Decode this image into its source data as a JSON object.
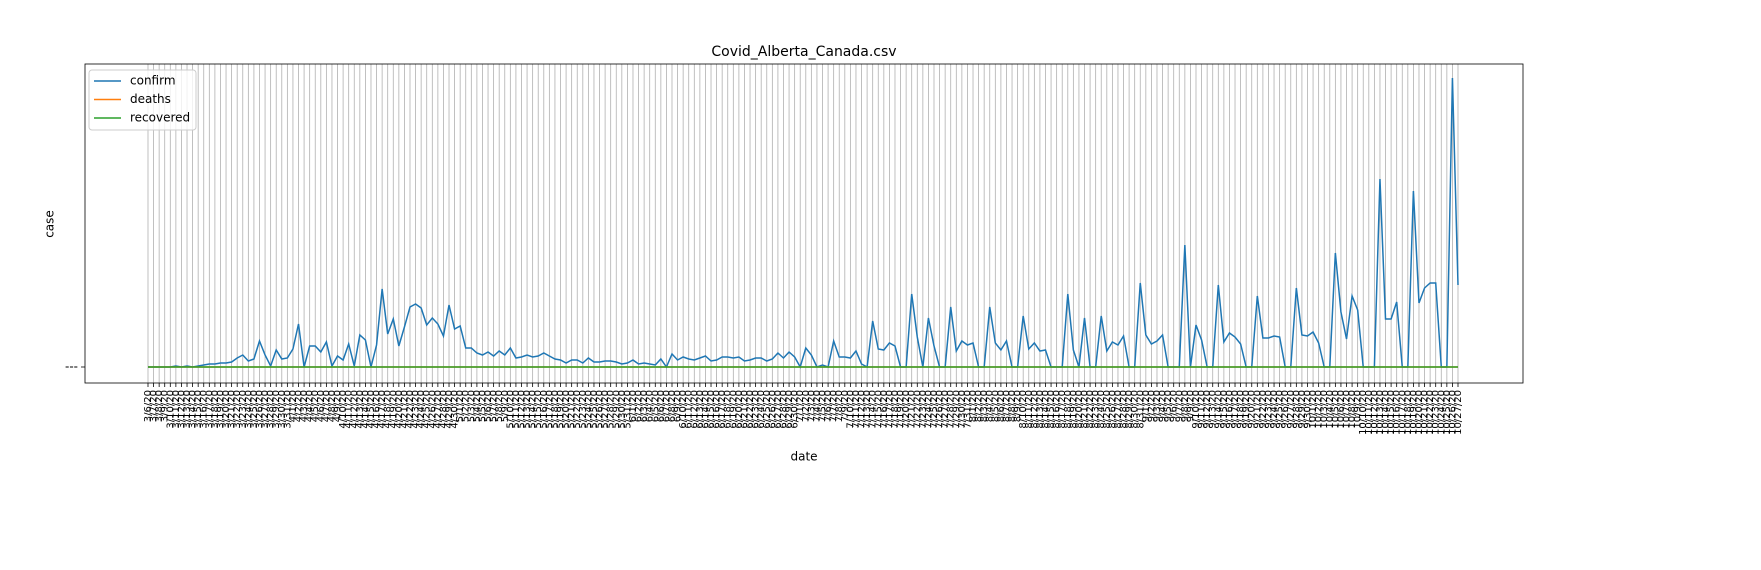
{
  "chart_data": {
    "type": "line",
    "title": "Covid_Alberta_Canada.csv",
    "xlabel": "date",
    "ylabel": "case",
    "categories": [
      "3/6/20",
      "3/7/20",
      "3/8/20",
      "3/9/20",
      "3/10/20",
      "3/11/20",
      "3/12/20",
      "3/13/20",
      "3/14/20",
      "3/15/20",
      "3/16/20",
      "3/17/20",
      "3/18/20",
      "3/19/20",
      "3/20/20",
      "3/21/20",
      "3/22/20",
      "3/23/20",
      "3/24/20",
      "3/25/20",
      "3/26/20",
      "3/27/20",
      "3/28/20",
      "3/29/20",
      "3/30/20",
      "3/31/20",
      "4/1/20",
      "4/2/20",
      "4/3/20",
      "4/4/20",
      "4/5/20",
      "4/6/20",
      "4/7/20",
      "4/8/20",
      "4/9/20",
      "4/10/20",
      "4/11/20",
      "4/12/20",
      "4/13/20",
      "4/14/20",
      "4/15/20",
      "4/16/20",
      "4/17/20",
      "4/18/20",
      "4/19/20",
      "4/20/20",
      "4/21/20",
      "4/22/20",
      "4/23/20",
      "4/24/20",
      "4/25/20",
      "4/26/20",
      "4/27/20",
      "4/28/20",
      "4/29/20",
      "4/30/20",
      "5/1/20",
      "5/2/20",
      "5/3/20",
      "5/4/20",
      "5/5/20",
      "5/6/20",
      "5/7/20",
      "5/8/20",
      "5/9/20",
      "5/10/20",
      "5/11/20",
      "5/12/20",
      "5/13/20",
      "5/14/20",
      "5/15/20",
      "5/16/20",
      "5/17/20",
      "5/18/20",
      "5/19/20",
      "5/20/20",
      "5/21/20",
      "5/22/20",
      "5/23/20",
      "5/24/20",
      "5/25/20",
      "5/26/20",
      "5/27/20",
      "5/28/20",
      "5/29/20",
      "5/30/20",
      "5/31/20",
      "6/1/20",
      "6/2/20",
      "6/3/20",
      "6/4/20",
      "6/5/20",
      "6/6/20",
      "6/7/20",
      "6/8/20",
      "6/9/20",
      "6/10/20",
      "6/11/20",
      "6/12/20",
      "6/13/20",
      "6/14/20",
      "6/15/20",
      "6/16/20",
      "6/17/20",
      "6/18/20",
      "6/19/20",
      "6/20/20",
      "6/21/20",
      "6/22/20",
      "6/23/20",
      "6/24/20",
      "6/25/20",
      "6/26/20",
      "6/27/20",
      "6/28/20",
      "6/29/20",
      "6/30/20",
      "7/1/20",
      "7/2/20",
      "7/3/20",
      "7/4/20",
      "7/5/20",
      "7/6/20",
      "7/7/20",
      "7/8/20",
      "7/9/20",
      "7/10/20",
      "7/11/20",
      "7/12/20",
      "7/13/20",
      "7/14/20",
      "7/15/20",
      "7/16/20",
      "7/17/20",
      "7/18/20",
      "7/19/20",
      "7/20/20",
      "7/21/20",
      "7/22/20",
      "7/23/20",
      "7/24/20",
      "7/25/20",
      "7/26/20",
      "7/27/20",
      "7/28/20",
      "7/29/20",
      "7/30/20",
      "7/31/20",
      "8/1/20",
      "8/2/20",
      "8/3/20",
      "8/4/20",
      "8/5/20",
      "8/6/20",
      "8/7/20",
      "8/8/20",
      "8/9/20",
      "8/10/20",
      "8/11/20",
      "8/12/20",
      "8/13/20",
      "8/14/20",
      "8/15/20",
      "8/16/20",
      "8/17/20",
      "8/18/20",
      "8/19/20",
      "8/20/20",
      "8/21/20",
      "8/22/20",
      "8/23/20",
      "8/24/20",
      "8/25/20",
      "8/26/20",
      "8/27/20",
      "8/28/20",
      "8/29/20",
      "8/30/20",
      "8/31/20",
      "9/1/20",
      "9/2/20",
      "9/3/20",
      "9/4/20",
      "9/5/20",
      "9/6/20",
      "9/7/20",
      "9/8/20",
      "9/9/20",
      "9/10/20",
      "9/11/20",
      "9/12/20",
      "9/13/20",
      "9/14/20",
      "9/15/20",
      "9/16/20",
      "9/17/20",
      "9/18/20",
      "9/19/20",
      "9/20/20",
      "9/21/20",
      "9/22/20",
      "9/23/20",
      "9/24/20",
      "9/25/20",
      "9/26/20",
      "9/27/20",
      "9/28/20",
      "9/29/20",
      "9/30/20",
      "10/1/20",
      "10/2/20",
      "10/3/20",
      "10/4/20",
      "10/5/20",
      "10/6/20",
      "10/7/20",
      "10/8/20",
      "10/9/20",
      "10/10/20",
      "10/11/20",
      "10/12/20",
      "10/13/20",
      "10/14/20",
      "10/15/20",
      "10/16/20",
      "10/17/20",
      "10/18/20",
      "10/19/20",
      "10/20/20",
      "10/21/20",
      "10/22/20",
      "10/23/20",
      "10/24/20",
      "10/25/20",
      "10/26/20",
      "10/27/20"
    ],
    "series": [
      {
        "name": "confirm",
        "color": "#1f77b4",
        "values": [
          0,
          0,
          0,
          0,
          0,
          5,
          0,
          5,
          0,
          5,
          10,
          15,
          15,
          20,
          20,
          25,
          45,
          60,
          30,
          40,
          130,
          60,
          5,
          85,
          40,
          45,
          90,
          215,
          0,
          105,
          105,
          75,
          125,
          5,
          55,
          35,
          115,
          5,
          160,
          135,
          0,
          110,
          390,
          165,
          240,
          105,
          200,
          300,
          315,
          295,
          210,
          245,
          215,
          155,
          310,
          190,
          205,
          95,
          95,
          70,
          60,
          75,
          55,
          80,
          60,
          95,
          45,
          50,
          60,
          50,
          55,
          70,
          55,
          40,
          35,
          20,
          35,
          35,
          20,
          45,
          25,
          25,
          30,
          30,
          25,
          15,
          20,
          35,
          15,
          20,
          15,
          10,
          40,
          0,
          65,
          35,
          50,
          40,
          35,
          45,
          55,
          30,
          35,
          50,
          50,
          45,
          50,
          30,
          35,
          45,
          45,
          30,
          40,
          70,
          45,
          75,
          50,
          0,
          95,
          60,
          0,
          10,
          0,
          130,
          50,
          50,
          45,
          80,
          15,
          0,
          230,
          90,
          85,
          120,
          105,
          0,
          0,
          365,
          150,
          0,
          245,
          105,
          0,
          0,
          300,
          80,
          130,
          110,
          120,
          0,
          0,
          300,
          120,
          85,
          130,
          0,
          0,
          255,
          90,
          120,
          80,
          85,
          0,
          0,
          0,
          365,
          85,
          0,
          245,
          0,
          0,
          255,
          80,
          125,
          110,
          155,
          0,
          0,
          420,
          160,
          115,
          130,
          160,
          0,
          0,
          0,
          610,
          0,
          210,
          135,
          0,
          0,
          410,
          125,
          170,
          150,
          115,
          0,
          0,
          355,
          145,
          145,
          155,
          150,
          0,
          0,
          395,
          160,
          155,
          175,
          120,
          0,
          0,
          570,
          275,
          140,
          355,
          285,
          0,
          0,
          0,
          940,
          240,
          240,
          325,
          0,
          0,
          880,
          320,
          395,
          420,
          420,
          0,
          0,
          1445,
          410
        ]
      },
      {
        "name": "deaths",
        "color": "#ff7f0e",
        "values": [
          0,
          0,
          0,
          0,
          0,
          0,
          0,
          0,
          0,
          0,
          0,
          0,
          0,
          0,
          0,
          0,
          0,
          0,
          0,
          0,
          0,
          0,
          0,
          0,
          0,
          0,
          0,
          0,
          0,
          0,
          0,
          0,
          0,
          0,
          0,
          0,
          0,
          0,
          0,
          0,
          0,
          0,
          0,
          0,
          0,
          0,
          0,
          0,
          0,
          0,
          0,
          0,
          0,
          0,
          0,
          0,
          0,
          0,
          0,
          0,
          0,
          0,
          0,
          0,
          0,
          0,
          0,
          0,
          0,
          0,
          0,
          0,
          0,
          0,
          0,
          0,
          0,
          0,
          0,
          0,
          0,
          0,
          0,
          0,
          0,
          0,
          0,
          0,
          0,
          0,
          0,
          0,
          0,
          0,
          0,
          0,
          0,
          0,
          0,
          0,
          0,
          0,
          0,
          0,
          0,
          0,
          0,
          0,
          0,
          0,
          0,
          0,
          0,
          0,
          0,
          0,
          0,
          0,
          0,
          0,
          0,
          0,
          0,
          0,
          0,
          0,
          0,
          0,
          0,
          0,
          0,
          0,
          0,
          0,
          0,
          0,
          0,
          0,
          0,
          0,
          0,
          0,
          0,
          0,
          0,
          0,
          0,
          0,
          0,
          0,
          0,
          0,
          0,
          0,
          0,
          0,
          0,
          0,
          0,
          0,
          0,
          0,
          0,
          0,
          0,
          0,
          0,
          0,
          0,
          0,
          0,
          0,
          0,
          0,
          0,
          0,
          0,
          0,
          0,
          0,
          0,
          0,
          0,
          0,
          0,
          0,
          0,
          0,
          0,
          0,
          0,
          0,
          0,
          0,
          0,
          0,
          0,
          0,
          0,
          0,
          0,
          0,
          0,
          0,
          0,
          0,
          0,
          0,
          0,
          0,
          0,
          0,
          0,
          0,
          0,
          0,
          0,
          0,
          0,
          0,
          0,
          0,
          0,
          0,
          0,
          0,
          0,
          0,
          0,
          0,
          0,
          0,
          0,
          0,
          0,
          0
        ]
      },
      {
        "name": "recovered",
        "color": "#2ca02c",
        "values": [
          0,
          0,
          0,
          0,
          0,
          0,
          0,
          0,
          0,
          0,
          0,
          0,
          0,
          0,
          0,
          0,
          0,
          0,
          0,
          0,
          0,
          0,
          0,
          0,
          0,
          0,
          0,
          0,
          0,
          0,
          0,
          0,
          0,
          0,
          0,
          0,
          0,
          0,
          0,
          0,
          0,
          0,
          0,
          0,
          0,
          0,
          0,
          0,
          0,
          0,
          0,
          0,
          0,
          0,
          0,
          0,
          0,
          0,
          0,
          0,
          0,
          0,
          0,
          0,
          0,
          0,
          0,
          0,
          0,
          0,
          0,
          0,
          0,
          0,
          0,
          0,
          0,
          0,
          0,
          0,
          0,
          0,
          0,
          0,
          0,
          0,
          0,
          0,
          0,
          0,
          0,
          0,
          0,
          0,
          0,
          0,
          0,
          0,
          0,
          0,
          0,
          0,
          0,
          0,
          0,
          0,
          0,
          0,
          0,
          0,
          0,
          0,
          0,
          0,
          0,
          0,
          0,
          0,
          0,
          0,
          0,
          0,
          0,
          0,
          0,
          0,
          0,
          0,
          0,
          0,
          0,
          0,
          0,
          0,
          0,
          0,
          0,
          0,
          0,
          0,
          0,
          0,
          0,
          0,
          0,
          0,
          0,
          0,
          0,
          0,
          0,
          0,
          0,
          0,
          0,
          0,
          0,
          0,
          0,
          0,
          0,
          0,
          0,
          0,
          0,
          0,
          0,
          0,
          0,
          0,
          0,
          0,
          0,
          0,
          0,
          0,
          0,
          0,
          0,
          0,
          0,
          0,
          0,
          0,
          0,
          0,
          0,
          0,
          0,
          0,
          0,
          0,
          0,
          0,
          0,
          0,
          0,
          0,
          0,
          0,
          0,
          0,
          0,
          0,
          0,
          0,
          0,
          0,
          0,
          0,
          0,
          0,
          0,
          0,
          0,
          0,
          0,
          0,
          0,
          0,
          0,
          0,
          0,
          0,
          0,
          0,
          0,
          0,
          0,
          0,
          0,
          0,
          0,
          0,
          0,
          0
        ]
      }
    ],
    "ylim": [
      -80,
      1515
    ],
    "yticks": [
      {
        "value": 0,
        "label": "---"
      }
    ],
    "grid": true,
    "legend": "upper left"
  }
}
